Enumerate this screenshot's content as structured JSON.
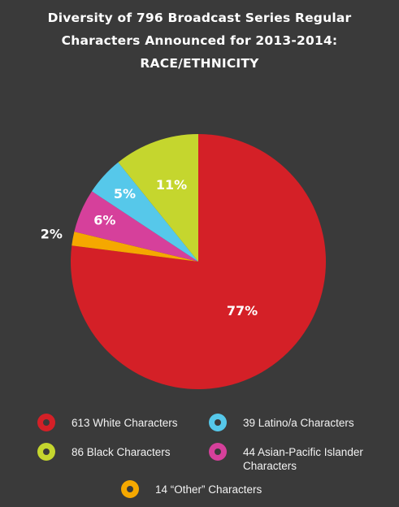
{
  "title": {
    "line1": "Diversity of 796 Broadcast Series Regular",
    "line2": "Characters Announced for 2013-2014:",
    "line3": "RACE/ETHNICITY"
  },
  "chart_data": {
    "type": "pie",
    "title": "Diversity of 796 Broadcast Series Regular Characters Announced for 2013-2014: RACE/ETHNICITY",
    "slices": [
      {
        "legend": "613 White Characters",
        "count": 613,
        "percent": 77,
        "label": "77%",
        "color": "#d42027"
      },
      {
        "legend": "14 “Other” Characters",
        "count": 14,
        "percent": 2,
        "label": "2%",
        "color": "#f5a800"
      },
      {
        "legend": "44 Asian-Pacific Islander\nCharacters",
        "count": 44,
        "percent": 6,
        "label": "6%",
        "color": "#d6409b"
      },
      {
        "legend": "39 Latino/a Characters",
        "count": 39,
        "percent": 5,
        "label": "5%",
        "color": "#56c8ea"
      },
      {
        "legend": "86 Black Characters",
        "count": 86,
        "percent": 11,
        "label": "11%",
        "color": "#c5d62e"
      }
    ],
    "legend_placement": "bottom"
  }
}
